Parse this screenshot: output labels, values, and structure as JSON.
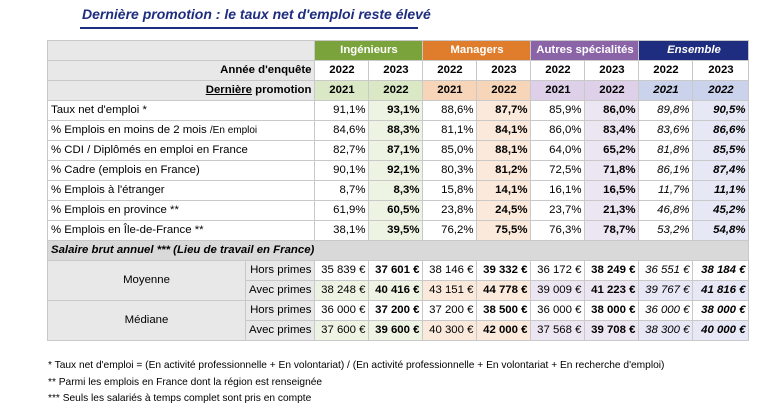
{
  "title": "Dernière promotion : le taux net d'emploi reste élevé",
  "groups": [
    "Ingénieurs",
    "Managers",
    "Autres spécialités",
    "Ensemble"
  ],
  "year_label": "Année d'enquête",
  "years": [
    "2022",
    "2023"
  ],
  "promo_label_prefix": "Dernière",
  "promo_label_suffix": " promotion",
  "promo_years": [
    "2021",
    "2022"
  ],
  "rows": [
    {
      "label": "Taux net d'emploi *",
      "sub": "",
      "values": [
        "91,1%",
        "93,1%",
        "88,6%",
        "87,7%",
        "85,9%",
        "86,0%",
        "89,8%",
        "90,5%"
      ]
    },
    {
      "label": "% Emplois en moins de 2 mois ",
      "sub": "/En emploi",
      "values": [
        "84,6%",
        "88,3%",
        "81,1%",
        "84,1%",
        "86,0%",
        "83,4%",
        "83,6%",
        "86,6%"
      ]
    },
    {
      "label": "% CDI / Diplômés en emploi en France",
      "sub": "",
      "values": [
        "82,7%",
        "87,1%",
        "85,0%",
        "88,1%",
        "64,0%",
        "65,2%",
        "81,8%",
        "85,5%"
      ]
    },
    {
      "label": "% Cadre (emplois en France)",
      "sub": "",
      "values": [
        "90,1%",
        "92,1%",
        "80,3%",
        "81,2%",
        "72,5%",
        "71,8%",
        "86,1%",
        "87,4%"
      ]
    },
    {
      "label": "% Emplois à l'étranger",
      "sub": "",
      "values": [
        "8,7%",
        "8,3%",
        "15,8%",
        "14,1%",
        "16,1%",
        "16,5%",
        "11,7%",
        "11,1%"
      ]
    },
    {
      "label": "% Emplois en province **",
      "sub": "",
      "values": [
        "61,9%",
        "60,5%",
        "23,8%",
        "24,5%",
        "23,7%",
        "21,3%",
        "46,8%",
        "45,2%"
      ]
    },
    {
      "label": "% Emplois en Île-de-France **",
      "sub": "",
      "values": [
        "38,1%",
        "39,5%",
        "76,2%",
        "75,5%",
        "76,3%",
        "78,7%",
        "53,2%",
        "54,8%"
      ]
    }
  ],
  "salary_title": "Salaire brut annuel *** (Lieu de travail en France)",
  "salary": [
    {
      "group": "Moyenne",
      "rows": [
        {
          "label": "Hors primes",
          "values": [
            "35 839 €",
            "37 601 €",
            "38 146 €",
            "39 332 €",
            "36 172 €",
            "38 249 €",
            "36 551 €",
            "38 184 €"
          ]
        },
        {
          "label": "Avec primes",
          "values": [
            "38 248 €",
            "40 416 €",
            "43 151 €",
            "44 778 €",
            "39 009 €",
            "41 223 €",
            "39 767 €",
            "41 816 €"
          ]
        }
      ]
    },
    {
      "group": "Médiane",
      "rows": [
        {
          "label": "Hors primes",
          "values": [
            "36 000 €",
            "37 200 €",
            "37 200 €",
            "38 500 €",
            "36 000 €",
            "38 000 €",
            "36 000 €",
            "38 000 €"
          ]
        },
        {
          "label": "Avec primes",
          "values": [
            "37 600 €",
            "39 600 €",
            "40 300 €",
            "42 000 €",
            "37 568 €",
            "39 708 €",
            "38 300 €",
            "40 000 €"
          ]
        }
      ]
    }
  ],
  "footnotes": [
    "* Taux net d'emploi = (En activité professionnelle + En volontariat) / (En activité professionnelle + En volontariat + En recherche d'emploi)",
    "** Parmi les emplois en France dont la région est renseignée",
    "*** Seuls les salariés à temps complet sont pris en compte"
  ],
  "colors": {
    "ingenieurs": "#7aa33b",
    "managers": "#e07d2d",
    "autres": "#8a64a7",
    "ensemble": "#1f2d80"
  }
}
